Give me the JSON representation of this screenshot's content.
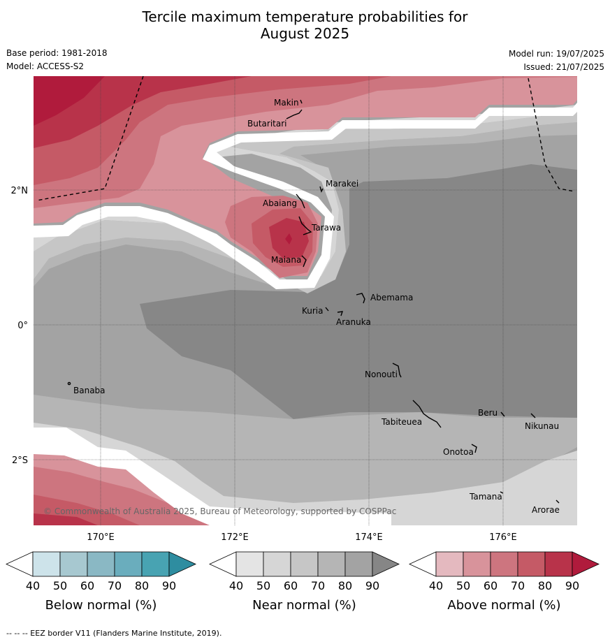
{
  "title_line1": "Tercile maximum temperature probabilities for",
  "title_line2": "August 2025",
  "base_period": "Base period: 1981-2018",
  "model": "Model: ACCESS-S2",
  "model_run": "Model run: 19/07/2025",
  "issued": "Issued: 21/07/2025",
  "copyright": "© Commonwealth of Australia 2025, Bureau of Meteorology, supported by COSPPac",
  "footer": "--  --  -- EEZ border V11 (Flanders Marine Institute, 2019).",
  "axes": {
    "lon_ticks": [
      "170°E",
      "172°E",
      "174°E",
      "176°E"
    ],
    "lat_ticks": [
      "2°N",
      "0°",
      "2°S"
    ]
  },
  "places": [
    {
      "name": "Makin"
    },
    {
      "name": "Butaritari"
    },
    {
      "name": "Marakei"
    },
    {
      "name": "Abaiang"
    },
    {
      "name": "Tarawa"
    },
    {
      "name": "Maiana"
    },
    {
      "name": "Abemama"
    },
    {
      "name": "Kuria"
    },
    {
      "name": "Aranuka"
    },
    {
      "name": "Nonouti"
    },
    {
      "name": "Banaba"
    },
    {
      "name": "Beru"
    },
    {
      "name": "Tabiteuea"
    },
    {
      "name": "Nikunau"
    },
    {
      "name": "Onotoa"
    },
    {
      "name": "Tamana"
    },
    {
      "name": "Arorae"
    }
  ],
  "colorbars": [
    {
      "title": "Below normal (%)",
      "ticks": [
        "40",
        "50",
        "60",
        "70",
        "80",
        "90"
      ],
      "colors": [
        "#cde3ea",
        "#a7c8d0",
        "#8ab8c4",
        "#6aadbd",
        "#48a3b2",
        "#2e8da0"
      ]
    },
    {
      "title": "Near normal (%)",
      "ticks": [
        "40",
        "50",
        "60",
        "70",
        "80",
        "90"
      ],
      "colors": [
        "#e4e4e4",
        "#d6d6d6",
        "#c6c6c6",
        "#b5b5b5",
        "#a3a3a3",
        "#868686"
      ]
    },
    {
      "title": "Above normal (%)",
      "ticks": [
        "40",
        "50",
        "60",
        "70",
        "80",
        "90"
      ],
      "colors": [
        "#e4b9bf",
        "#d8939b",
        "#cd757f",
        "#c55a66",
        "#b8334a",
        "#b01b3c"
      ]
    }
  ]
}
